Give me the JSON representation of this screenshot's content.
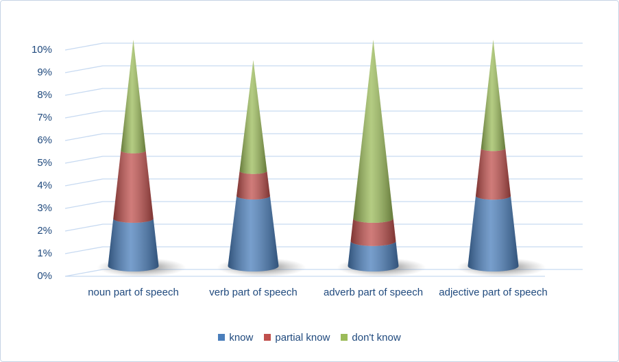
{
  "chart_data": {
    "type": "cone",
    "categories": [
      "noun part of speech",
      "verb part of speech",
      "adverb part of speech",
      "adjective part of speech"
    ],
    "series": [
      {
        "name": "know",
        "color": "#4a7ebb",
        "values": [
          2.1,
          3.1,
          1.1,
          3.1
        ]
      },
      {
        "name": "partial know",
        "color": "#c0504d",
        "values": [
          3.0,
          1.1,
          1.0,
          2.1
        ]
      },
      {
        "name": "don't know",
        "color": "#9bbb59",
        "values": [
          4.9,
          4.9,
          7.9,
          4.8
        ]
      }
    ],
    "ylim": [
      0,
      10
    ],
    "yticks": [
      {
        "value": 0,
        "label": "0%"
      },
      {
        "value": 1,
        "label": "1%"
      },
      {
        "value": 2,
        "label": "2%"
      },
      {
        "value": 3,
        "label": "3%"
      },
      {
        "value": 4,
        "label": "4%"
      },
      {
        "value": 5,
        "label": "5%"
      },
      {
        "value": 6,
        "label": "6%"
      },
      {
        "value": 7,
        "label": "7%"
      },
      {
        "value": 8,
        "label": "8%"
      },
      {
        "value": 9,
        "label": "9%"
      },
      {
        "value": 10,
        "label": "10%"
      }
    ],
    "grid": true,
    "legend": "bottom"
  }
}
